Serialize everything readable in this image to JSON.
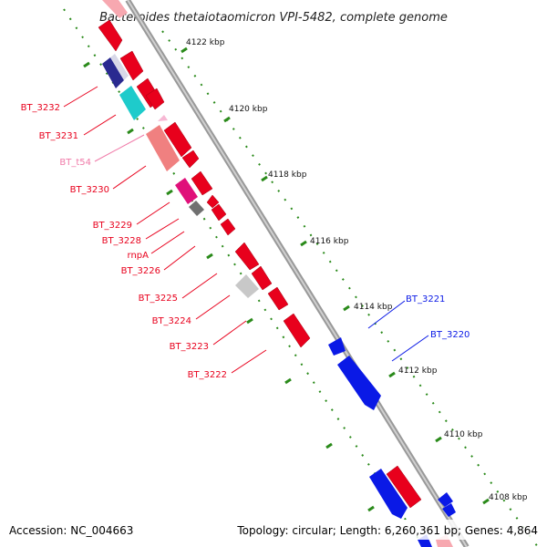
{
  "title": "Bacteroides thetaiotaomicron VPI-5482, complete genome",
  "footer": {
    "accession": "Accession: NC_004663",
    "summary": "Topology: circular; Length: 6,260,361 bp; Genes: 4,864"
  },
  "ticks": [
    "4122 kbp",
    "4120 kbp",
    "4118 kbp",
    "4116 kbp",
    "4114 kbp",
    "4112 kbp",
    "4110 kbp",
    "4108 kbp"
  ],
  "colors": {
    "reverse_gene": "#e8001c",
    "forward_gene": "#0a19e6",
    "backbone": "#888888",
    "tick_dots": "#2a8a1a",
    "trna": "#f07aa8"
  },
  "gene_labels": {
    "bt3232": "BT_3232",
    "bt3231": "BT_3231",
    "bt_t54": "BT_t54",
    "bt3230": "BT_3230",
    "bt3229": "BT_3229",
    "bt3228": "BT_3228",
    "rnpa": "rnpA",
    "bt3226": "BT_3226",
    "bt3225": "BT_3225",
    "bt3224": "BT_3224",
    "bt3223": "BT_3223",
    "bt3222": "BT_3222",
    "bt3221": "BT_3221",
    "bt3220": "BT_3220"
  }
}
